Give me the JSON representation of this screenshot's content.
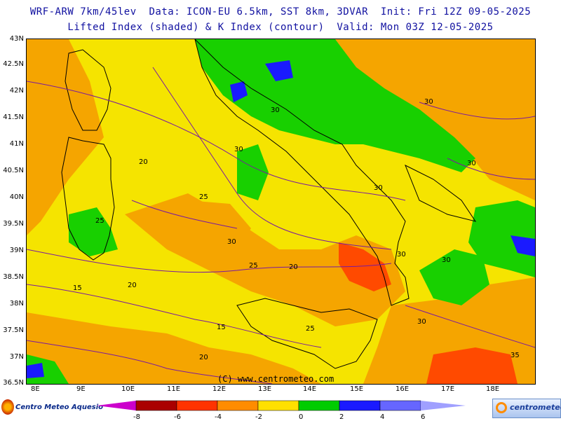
{
  "header": {
    "line1": "WRF-ARW 7km/45lev  Data: ICON-EU 6.5km, SST 8km, 3DVAR  Init: Fri 12Z 09-05-2025",
    "line2": "Lifted Index (shaded) & K Index (contour)  Valid: Mon 03Z 12-05-2025"
  },
  "axes": {
    "lat_labels": [
      "43N",
      "42.5N",
      "42N",
      "41.5N",
      "41N",
      "40.5N",
      "40N",
      "39.5N",
      "39N",
      "38.5N",
      "38N",
      "37.5N",
      "37N",
      "36.5N"
    ],
    "lon_labels": [
      "8E",
      "9E",
      "10E",
      "11E",
      "12E",
      "13E",
      "14E",
      "15E",
      "16E",
      "17E",
      "18E"
    ]
  },
  "contour_labels": [
    "30",
    "30",
    "30",
    "30",
    "30",
    "30",
    "30",
    "30",
    "30",
    "25",
    "25",
    "25",
    "25",
    "20",
    "20",
    "20",
    "20",
    "15",
    "15",
    "35"
  ],
  "credit": "(C) www.centrometeo.com",
  "logos": {
    "left": "Centro Meteo Aquesio",
    "right": "centrometeo"
  },
  "legend": {
    "labels": [
      "-8",
      "-6",
      "-4",
      "-2",
      "0",
      "2",
      "4",
      "6"
    ],
    "colors": [
      "#cc00cc",
      "#aa0000",
      "#ff3300",
      "#ff8c00",
      "#ffe000",
      "#00cc00",
      "#1a1aff",
      "#6666ff",
      "#a0a0ff"
    ]
  }
}
